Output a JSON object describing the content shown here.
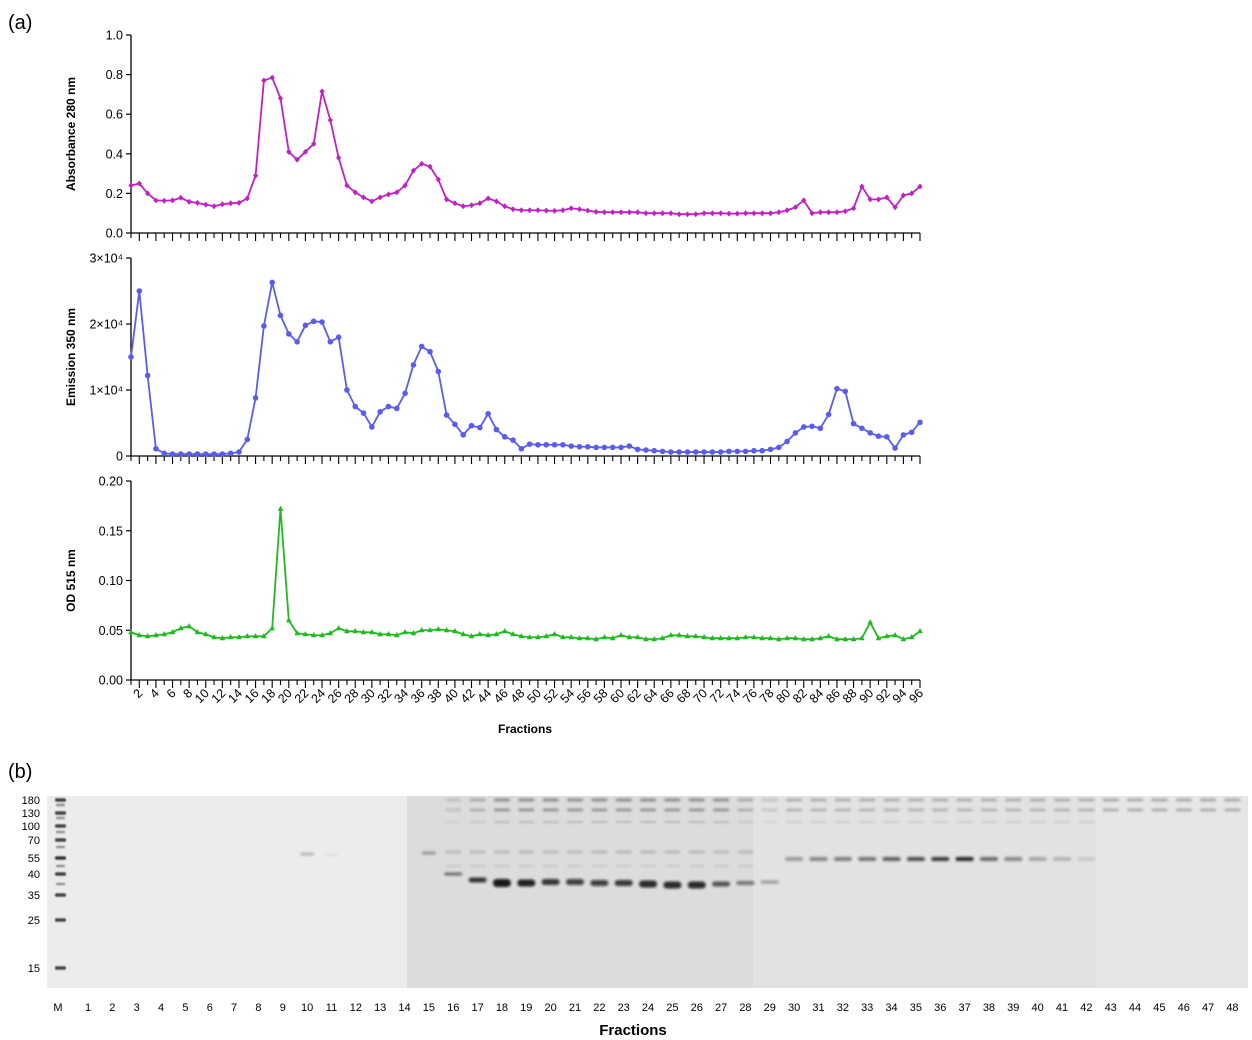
{
  "figure": {
    "panel_a_label": "(a)",
    "panel_b_label": "(b)"
  },
  "colors": {
    "absorbance": "#c21fc6",
    "emission": "#5a5cf0",
    "od": "#1dbb1d",
    "axis": "#000000"
  },
  "chart_data": [
    {
      "type": "line",
      "ylabel": "Absorbance 280 nm",
      "xlabel": "",
      "ylim": [
        0,
        1.0
      ],
      "y_ticks": [
        "0.0",
        "0.2",
        "0.4",
        "0.6",
        "0.8",
        "1.0"
      ],
      "y_tick_values": [
        0,
        0.2,
        0.4,
        0.6,
        0.8,
        1.0
      ],
      "marker": "diamond",
      "series": [
        {
          "values": [
            0.24,
            0.25,
            0.2,
            0.165,
            0.163,
            0.165,
            0.178,
            0.158,
            0.152,
            0.143,
            0.135,
            0.145,
            0.15,
            0.152,
            0.175,
            0.29,
            0.77,
            0.785,
            0.68,
            0.41,
            0.37,
            0.41,
            0.45,
            0.715,
            0.57,
            0.38,
            0.24,
            0.205,
            0.18,
            0.16,
            0.18,
            0.195,
            0.205,
            0.24,
            0.315,
            0.35,
            0.335,
            0.27,
            0.17,
            0.15,
            0.135,
            0.14,
            0.15,
            0.175,
            0.16,
            0.135,
            0.12,
            0.115,
            0.115,
            0.115,
            0.113,
            0.112,
            0.115,
            0.125,
            0.12,
            0.113,
            0.107,
            0.105,
            0.105,
            0.105,
            0.105,
            0.105,
            0.1,
            0.1,
            0.1,
            0.1,
            0.095,
            0.095,
            0.095,
            0.1,
            0.1,
            0.1,
            0.098,
            0.098,
            0.1,
            0.1,
            0.1,
            0.1,
            0.105,
            0.115,
            0.13,
            0.165,
            0.1,
            0.105,
            0.105,
            0.105,
            0.11,
            0.125,
            0.235,
            0.17,
            0.17,
            0.18,
            0.13,
            0.19,
            0.2,
            0.235
          ]
        }
      ]
    },
    {
      "type": "line",
      "ylabel": "Emission 350 nm",
      "xlabel": "",
      "ylim": [
        0,
        30000
      ],
      "y_ticks": [
        "0",
        "1×10⁴",
        "2×10⁴",
        "3×10⁴"
      ],
      "y_tick_values": [
        0,
        10000,
        20000,
        30000
      ],
      "marker": "circle",
      "series": [
        {
          "values": [
            15000,
            25000,
            12200,
            1100,
            400,
            300,
            300,
            300,
            300,
            300,
            300,
            300,
            400,
            600,
            2500,
            8800,
            19700,
            26300,
            21300,
            18500,
            17300,
            19800,
            20400,
            20300,
            17300,
            18000,
            10000,
            7500,
            6500,
            4400,
            6700,
            7500,
            7200,
            9500,
            13800,
            16600,
            15800,
            12800,
            6200,
            4800,
            3200,
            4600,
            4300,
            6400,
            4000,
            2900,
            2400,
            1100,
            1800,
            1700,
            1700,
            1700,
            1700,
            1500,
            1400,
            1400,
            1300,
            1300,
            1300,
            1300,
            1500,
            1000,
            900,
            800,
            700,
            600,
            600,
            600,
            600,
            600,
            600,
            600,
            700,
            700,
            700,
            800,
            800,
            1000,
            1300,
            2200,
            3500,
            4400,
            4500,
            4200,
            6300,
            10200,
            9800,
            4900,
            4200,
            3500,
            3000,
            2900,
            1200,
            3200,
            3600,
            5100
          ]
        }
      ]
    },
    {
      "type": "line",
      "ylabel": "OD 515 nm",
      "xlabel": "Fractions",
      "ylim": [
        0,
        0.2
      ],
      "y_ticks": [
        "0.00",
        "0.05",
        "0.10",
        "0.15",
        "0.20"
      ],
      "y_tick_values": [
        0,
        0.05,
        0.1,
        0.15,
        0.2
      ],
      "x_ticks": [
        "2",
        "4",
        "6",
        "8",
        "10",
        "12",
        "14",
        "16",
        "18",
        "20",
        "22",
        "24",
        "26",
        "28",
        "30",
        "32",
        "34",
        "36",
        "38",
        "40",
        "42",
        "44",
        "46",
        "48",
        "50",
        "52",
        "54",
        "56",
        "58",
        "60",
        "62",
        "64",
        "66",
        "68",
        "70",
        "72",
        "74",
        "76",
        "78",
        "80",
        "82",
        "84",
        "86",
        "88",
        "90",
        "92",
        "94",
        "96"
      ],
      "marker": "triangle",
      "series": [
        {
          "values": [
            0.048,
            0.045,
            0.044,
            0.045,
            0.046,
            0.048,
            0.052,
            0.054,
            0.048,
            0.046,
            0.043,
            0.042,
            0.043,
            0.043,
            0.044,
            0.044,
            0.044,
            0.052,
            0.172,
            0.06,
            0.047,
            0.046,
            0.045,
            0.045,
            0.047,
            0.052,
            0.049,
            0.049,
            0.048,
            0.048,
            0.046,
            0.046,
            0.045,
            0.048,
            0.047,
            0.05,
            0.05,
            0.051,
            0.05,
            0.049,
            0.046,
            0.044,
            0.046,
            0.045,
            0.046,
            0.049,
            0.046,
            0.044,
            0.043,
            0.043,
            0.044,
            0.046,
            0.043,
            0.043,
            0.042,
            0.042,
            0.041,
            0.043,
            0.042,
            0.045,
            0.043,
            0.043,
            0.041,
            0.041,
            0.042,
            0.045,
            0.045,
            0.044,
            0.044,
            0.043,
            0.042,
            0.042,
            0.042,
            0.042,
            0.043,
            0.043,
            0.042,
            0.042,
            0.041,
            0.042,
            0.042,
            0.041,
            0.041,
            0.042,
            0.044,
            0.041,
            0.041,
            0.041,
            0.042,
            0.058,
            0.042,
            0.044,
            0.045,
            0.041,
            0.043,
            0.049
          ]
        }
      ]
    }
  ],
  "gel": {
    "marker_labels": [
      "180",
      "130",
      "100",
      "70",
      "55",
      "40",
      "35",
      "25",
      "15"
    ],
    "lane_labels": [
      "M",
      "1",
      "2",
      "3",
      "4",
      "5",
      "6",
      "7",
      "8",
      "9",
      "10",
      "11",
      "12",
      "13",
      "14",
      "15",
      "16",
      "17",
      "18",
      "19",
      "20",
      "21",
      "22",
      "23",
      "24",
      "25",
      "26",
      "27",
      "28",
      "29",
      "30",
      "31",
      "32",
      "33",
      "34",
      "35",
      "36",
      "37",
      "38",
      "39",
      "40",
      "41",
      "42",
      "43",
      "44",
      "45",
      "46",
      "47",
      "48"
    ],
    "xlabel": "Fractions"
  }
}
